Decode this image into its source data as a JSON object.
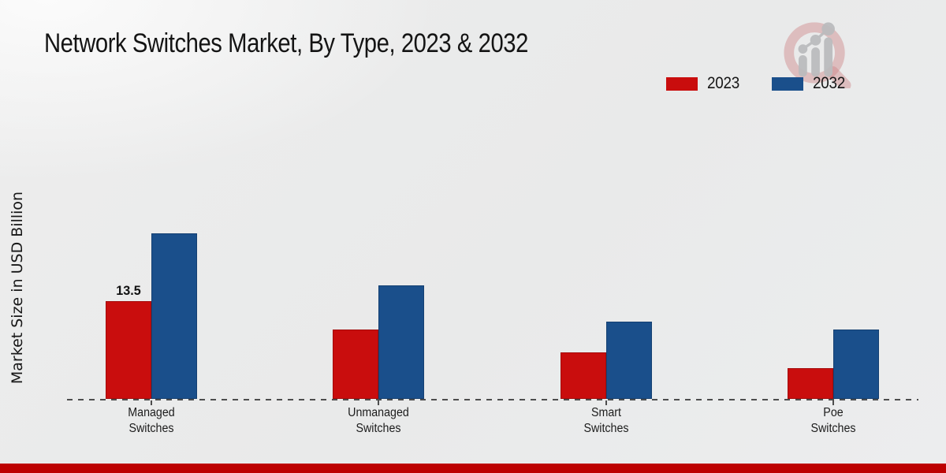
{
  "header": {
    "title": "Network Switches Market, By Type, 2023 & 2032"
  },
  "y_axis_label": "Market Size in USD Billion",
  "legend": [
    {
      "label": "2023",
      "color": "#c90d0d"
    },
    {
      "label": "2032",
      "color": "#1a4f8b"
    }
  ],
  "chart_data": {
    "type": "bar",
    "title": "Network Switches Market, By Type, 2023 & 2032",
    "ylabel": "Market Size in USD Billion",
    "xlabel": "",
    "categories": [
      "Managed Switches",
      "Unmanaged Switches",
      "Smart Switches",
      "Poe Switches"
    ],
    "series": [
      {
        "name": "2023",
        "color": "#c90d0d",
        "values": [
          13.5,
          9.6,
          6.4,
          4.2
        ]
      },
      {
        "name": "2032",
        "color": "#1a4f8b",
        "values": [
          22.8,
          15.7,
          10.6,
          9.6
        ]
      }
    ],
    "bar_labels": [
      {
        "series": "2023",
        "category": "Managed Switches",
        "text": "13.5"
      }
    ],
    "ylim": [
      0,
      25
    ],
    "gridlines": false,
    "baseline_style": "dashed",
    "legend_position": "top-right"
  },
  "logo": {
    "name": "magnifier-bar-chart-logo"
  },
  "footer": {
    "bar_color": "#bd0101"
  }
}
